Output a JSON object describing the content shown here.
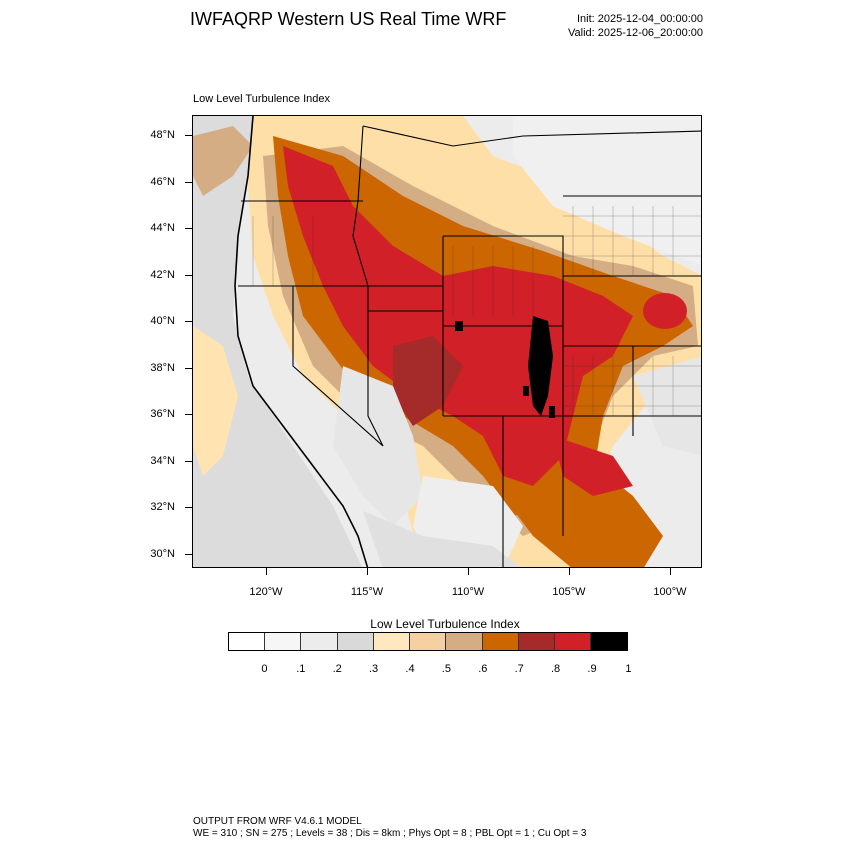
{
  "header": {
    "title": "IWFAQRP Western US Real Time WRF",
    "init": "Init: 2025-12-04_00:00:00",
    "valid": "Valid: 2025-12-06_20:00:00"
  },
  "panel": {
    "title": "Low Level Turbulence Index"
  },
  "map": {
    "lat_labels": [
      "48°N",
      "46°N",
      "44°N",
      "42°N",
      "40°N",
      "38°N",
      "36°N",
      "34°N",
      "32°N",
      "30°N"
    ],
    "lon_labels": [
      "120°W",
      "115°W",
      "110°W",
      "105°W",
      "100°W"
    ],
    "colors": {
      "ocean": "#dddddd",
      "low": "#f2f2f2",
      "tan": "#ffdfa8",
      "light_brown": "#d4ad84",
      "orange": "#cc6600",
      "dark_red": "#a52a2a",
      "red": "#d12027",
      "black": "#000000"
    }
  },
  "colorbar": {
    "title": "Low Level Turbulence Index",
    "colors": [
      "#ffffff",
      "#f6f6f6",
      "#ececec",
      "#d9d9d9",
      "#ffe8bf",
      "#f5d0a0",
      "#d4ad84",
      "#cc6600",
      "#a52a2a",
      "#d12027",
      "#000000"
    ],
    "labels": [
      "0",
      ".1",
      ".2",
      ".3",
      ".4",
      ".5",
      ".6",
      ".7",
      ".8",
      ".9",
      "1"
    ]
  },
  "footer": {
    "line1": "OUTPUT FROM WRF V4.6.1 MODEL",
    "line2": "WE = 310 ; SN = 275 ; Levels = 38 ; Dis = 8km ; Phys Opt = 8 ; PBL Opt = 1 ; Cu Opt = 3"
  }
}
